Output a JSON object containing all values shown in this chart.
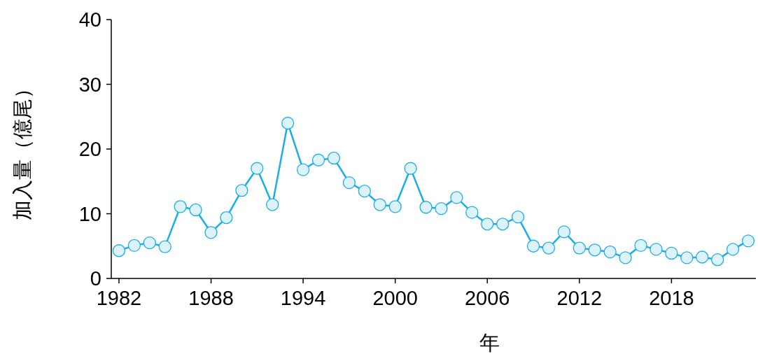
{
  "chart_data": {
    "type": "line",
    "xlabel": "年",
    "ylabel": "加入量（億尾）",
    "x": [
      1982,
      1983,
      1984,
      1985,
      1986,
      1987,
      1988,
      1989,
      1990,
      1991,
      1992,
      1993,
      1994,
      1995,
      1996,
      1997,
      1998,
      1999,
      2000,
      2001,
      2002,
      2003,
      2004,
      2005,
      2006,
      2007,
      2008,
      2009,
      2010,
      2011,
      2012,
      2013,
      2014,
      2015,
      2016,
      2017,
      2018,
      2019,
      2020,
      2021,
      2022,
      2023
    ],
    "series": [
      {
        "color": "#1aaee6",
        "values": [
          4.3,
          5.1,
          5.5,
          4.9,
          11.1,
          10.6,
          7.1,
          9.4,
          13.6,
          17.0,
          11.4,
          24.0,
          16.8,
          18.3,
          18.6,
          14.8,
          13.5,
          11.4,
          11.1,
          17.0,
          11.0,
          10.8,
          12.5,
          10.2,
          8.4,
          8.4,
          9.5,
          5.0,
          4.7,
          7.2,
          4.7,
          4.4,
          4.1,
          3.2,
          5.1,
          4.5,
          3.9,
          3.2,
          3.3,
          2.9,
          4.5,
          5.8
        ]
      }
    ],
    "xlim": [
      1981.5,
      2023.5
    ],
    "ylim": [
      0,
      40
    ],
    "yticks": [
      0,
      10,
      20,
      30,
      40
    ],
    "xticks": [
      1982,
      1988,
      1994,
      2000,
      2006,
      2012,
      2018
    ],
    "marker": "circle",
    "line_style": "solid"
  }
}
